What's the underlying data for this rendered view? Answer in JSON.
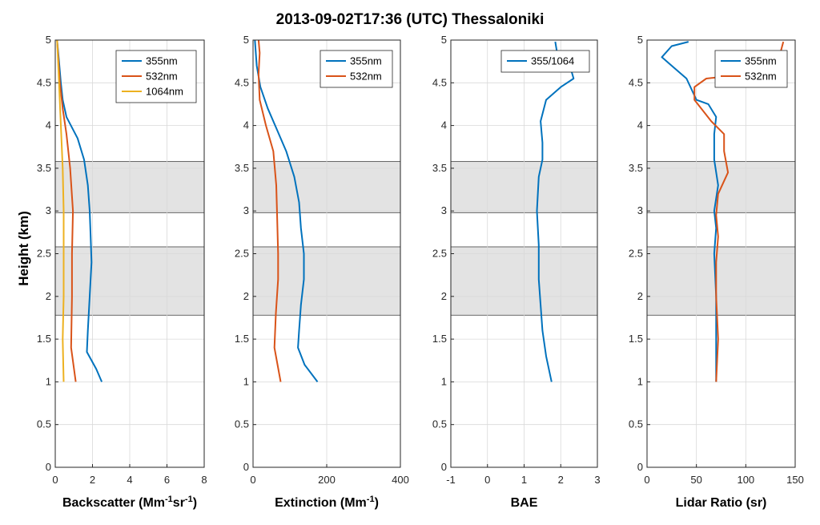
{
  "figure": {
    "title": "2013-09-02T17:36 (UTC) Thessaloniki",
    "ylabel": "Height (km)"
  },
  "chart_data": [
    {
      "type": "line",
      "xlabel": "Backscatter (Mm⁻¹sr⁻¹)",
      "xlabel_parts": [
        "Backscatter (Mm",
        "-1",
        "sr",
        "-1",
        ")"
      ],
      "xlim": [
        0,
        8
      ],
      "ylim": [
        0,
        5
      ],
      "xticks": [
        0,
        2,
        4,
        6,
        8
      ],
      "xtick_labels": [
        "0",
        "2",
        "4",
        "6",
        "8"
      ],
      "yticks": [
        0,
        0.5,
        1,
        1.5,
        2,
        2.5,
        3,
        3.5,
        4,
        4.5,
        5
      ],
      "ytick_labels": [
        "0",
        "0.5",
        "1",
        "1.5",
        "2",
        "2.5",
        "3",
        "3.5",
        "4",
        "4.5",
        "5"
      ],
      "grid": true,
      "legend_position": "top-right",
      "shaded_layers_km": [
        [
          1.78,
          2.58
        ],
        [
          2.98,
          3.58
        ]
      ],
      "series": [
        {
          "name": "355nm",
          "color": "#0072BD",
          "points": [
            [
              2.5,
              1.0
            ],
            [
              2.2,
              1.15
            ],
            [
              1.7,
              1.35
            ],
            [
              1.75,
              1.6
            ],
            [
              1.85,
              2.0
            ],
            [
              1.95,
              2.4
            ],
            [
              1.9,
              2.7
            ],
            [
              1.85,
              3.0
            ],
            [
              1.75,
              3.3
            ],
            [
              1.55,
              3.6
            ],
            [
              1.2,
              3.85
            ],
            [
              0.6,
              4.1
            ],
            [
              0.4,
              4.3
            ],
            [
              0.3,
              4.5
            ],
            [
              0.2,
              4.75
            ],
            [
              0.1,
              5.0
            ]
          ]
        },
        {
          "name": "532nm",
          "color": "#D95319",
          "points": [
            [
              1.1,
              1.0
            ],
            [
              0.85,
              1.4
            ],
            [
              0.9,
              2.0
            ],
            [
              0.9,
              2.5
            ],
            [
              0.95,
              3.0
            ],
            [
              0.8,
              3.5
            ],
            [
              0.6,
              3.9
            ],
            [
              0.4,
              4.2
            ],
            [
              0.25,
              4.5
            ],
            [
              0.1,
              5.0
            ]
          ]
        },
        {
          "name": "1064nm",
          "color": "#EDB120",
          "points": [
            [
              0.45,
              1.0
            ],
            [
              0.4,
              1.5
            ],
            [
              0.45,
              2.0
            ],
            [
              0.45,
              2.5
            ],
            [
              0.45,
              3.0
            ],
            [
              0.4,
              3.5
            ],
            [
              0.3,
              4.0
            ],
            [
              0.2,
              4.5
            ],
            [
              0.1,
              5.0
            ]
          ]
        }
      ]
    },
    {
      "type": "line",
      "xlabel": "Extinction (Mm⁻¹)",
      "xlabel_parts": [
        "Extinction (Mm",
        "-1",
        ")"
      ],
      "xlim": [
        0,
        400
      ],
      "ylim": [
        0,
        5
      ],
      "xticks": [
        0,
        200,
        400
      ],
      "xtick_labels": [
        "0",
        "200",
        "400"
      ],
      "yticks": [
        0,
        0.5,
        1,
        1.5,
        2,
        2.5,
        3,
        3.5,
        4,
        4.5,
        5
      ],
      "ytick_labels": [
        "0",
        "0.5",
        "1",
        "1.5",
        "2",
        "2.5",
        "3",
        "3.5",
        "4",
        "4.5",
        "5"
      ],
      "grid": true,
      "legend_position": "top-right",
      "shaded_layers_km": [
        [
          1.78,
          2.58
        ],
        [
          2.98,
          3.58
        ]
      ],
      "series": [
        {
          "name": "355nm",
          "color": "#0072BD",
          "points": [
            [
              175,
              1.0
            ],
            [
              140,
              1.2
            ],
            [
              122,
              1.4
            ],
            [
              125,
              1.6
            ],
            [
              130,
              1.9
            ],
            [
              138,
              2.2
            ],
            [
              138,
              2.5
            ],
            [
              130,
              2.8
            ],
            [
              125,
              3.1
            ],
            [
              112,
              3.4
            ],
            [
              90,
              3.7
            ],
            [
              65,
              3.95
            ],
            [
              40,
              4.2
            ],
            [
              20,
              4.45
            ],
            [
              10,
              4.7
            ],
            [
              5,
              5.0
            ]
          ]
        },
        {
          "name": "532nm",
          "color": "#D95319",
          "points": [
            [
              75,
              1.0
            ],
            [
              58,
              1.4
            ],
            [
              62,
              1.8
            ],
            [
              68,
              2.2
            ],
            [
              68,
              2.5
            ],
            [
              65,
              3.0
            ],
            [
              63,
              3.3
            ],
            [
              55,
              3.7
            ],
            [
              35,
              4.0
            ],
            [
              18,
              4.3
            ],
            [
              15,
              4.6
            ],
            [
              18,
              4.85
            ],
            [
              15,
              5.0
            ]
          ]
        }
      ]
    },
    {
      "type": "line",
      "xlabel": "BAE",
      "xlim": [
        -1,
        3
      ],
      "ylim": [
        0,
        5
      ],
      "xticks": [
        -1,
        0,
        1,
        2,
        3
      ],
      "xtick_labels": [
        "-1",
        "0",
        "1",
        "2",
        "3"
      ],
      "yticks": [
        0,
        0.5,
        1,
        1.5,
        2,
        2.5,
        3,
        3.5,
        4,
        4.5,
        5
      ],
      "ytick_labels": [
        "0",
        "0.5",
        "1",
        "1.5",
        "2",
        "2.5",
        "3",
        "3.5",
        "4",
        "4.5",
        "5"
      ],
      "grid": true,
      "legend_position": "top-right",
      "shaded_layers_km": [
        [
          1.78,
          2.58
        ],
        [
          2.98,
          3.58
        ]
      ],
      "series": [
        {
          "name": "355/1064",
          "color": "#0072BD",
          "points": [
            [
              1.75,
              1.0
            ],
            [
              1.6,
              1.3
            ],
            [
              1.5,
              1.6
            ],
            [
              1.45,
              1.9
            ],
            [
              1.4,
              2.2
            ],
            [
              1.4,
              2.6
            ],
            [
              1.35,
              3.0
            ],
            [
              1.4,
              3.4
            ],
            [
              1.5,
              3.6
            ],
            [
              1.5,
              3.8
            ],
            [
              1.45,
              4.05
            ],
            [
              1.6,
              4.3
            ],
            [
              2.0,
              4.45
            ],
            [
              2.35,
              4.55
            ],
            [
              2.25,
              4.7
            ],
            [
              1.9,
              4.85
            ],
            [
              1.85,
              4.98
            ]
          ]
        }
      ]
    },
    {
      "type": "line",
      "xlabel": "Lidar Ratio (sr)",
      "xlim": [
        0,
        150
      ],
      "ylim": [
        0,
        5
      ],
      "xticks": [
        0,
        50,
        100,
        150
      ],
      "xtick_labels": [
        "0",
        "50",
        "100",
        "150"
      ],
      "yticks": [
        0,
        0.5,
        1,
        1.5,
        2,
        2.5,
        3,
        3.5,
        4,
        4.5,
        5
      ],
      "ytick_labels": [
        "0",
        "0.5",
        "1",
        "1.5",
        "2",
        "2.5",
        "3",
        "3.5",
        "4",
        "4.5",
        "5"
      ],
      "grid": true,
      "legend_position": "top-right",
      "shaded_layers_km": [
        [
          1.78,
          2.58
        ],
        [
          2.98,
          3.58
        ]
      ],
      "series": [
        {
          "name": "355nm",
          "color": "#0072BD",
          "points": [
            [
              70,
              1.0
            ],
            [
              70,
              1.5
            ],
            [
              70,
              2.0
            ],
            [
              68,
              2.5
            ],
            [
              70,
              2.8
            ],
            [
              68,
              3.0
            ],
            [
              72,
              3.3
            ],
            [
              68,
              3.6
            ],
            [
              68,
              3.9
            ],
            [
              70,
              4.1
            ],
            [
              62,
              4.25
            ],
            [
              50,
              4.3
            ],
            [
              40,
              4.55
            ],
            [
              25,
              4.7
            ],
            [
              15,
              4.8
            ],
            [
              25,
              4.93
            ],
            [
              42,
              4.98
            ]
          ]
        },
        {
          "name": "532nm",
          "color": "#D95319",
          "points": [
            [
              70,
              1.0
            ],
            [
              72,
              1.5
            ],
            [
              70,
              2.0
            ],
            [
              70,
              2.4
            ],
            [
              72,
              2.7
            ],
            [
              70,
              2.95
            ],
            [
              72,
              3.2
            ],
            [
              82,
              3.45
            ],
            [
              78,
              3.7
            ],
            [
              78,
              3.9
            ],
            [
              65,
              4.05
            ],
            [
              48,
              4.3
            ],
            [
              48,
              4.45
            ],
            [
              60,
              4.55
            ],
            [
              100,
              4.6
            ],
            [
              135,
              4.85
            ],
            [
              138,
              4.98
            ]
          ]
        }
      ]
    }
  ]
}
